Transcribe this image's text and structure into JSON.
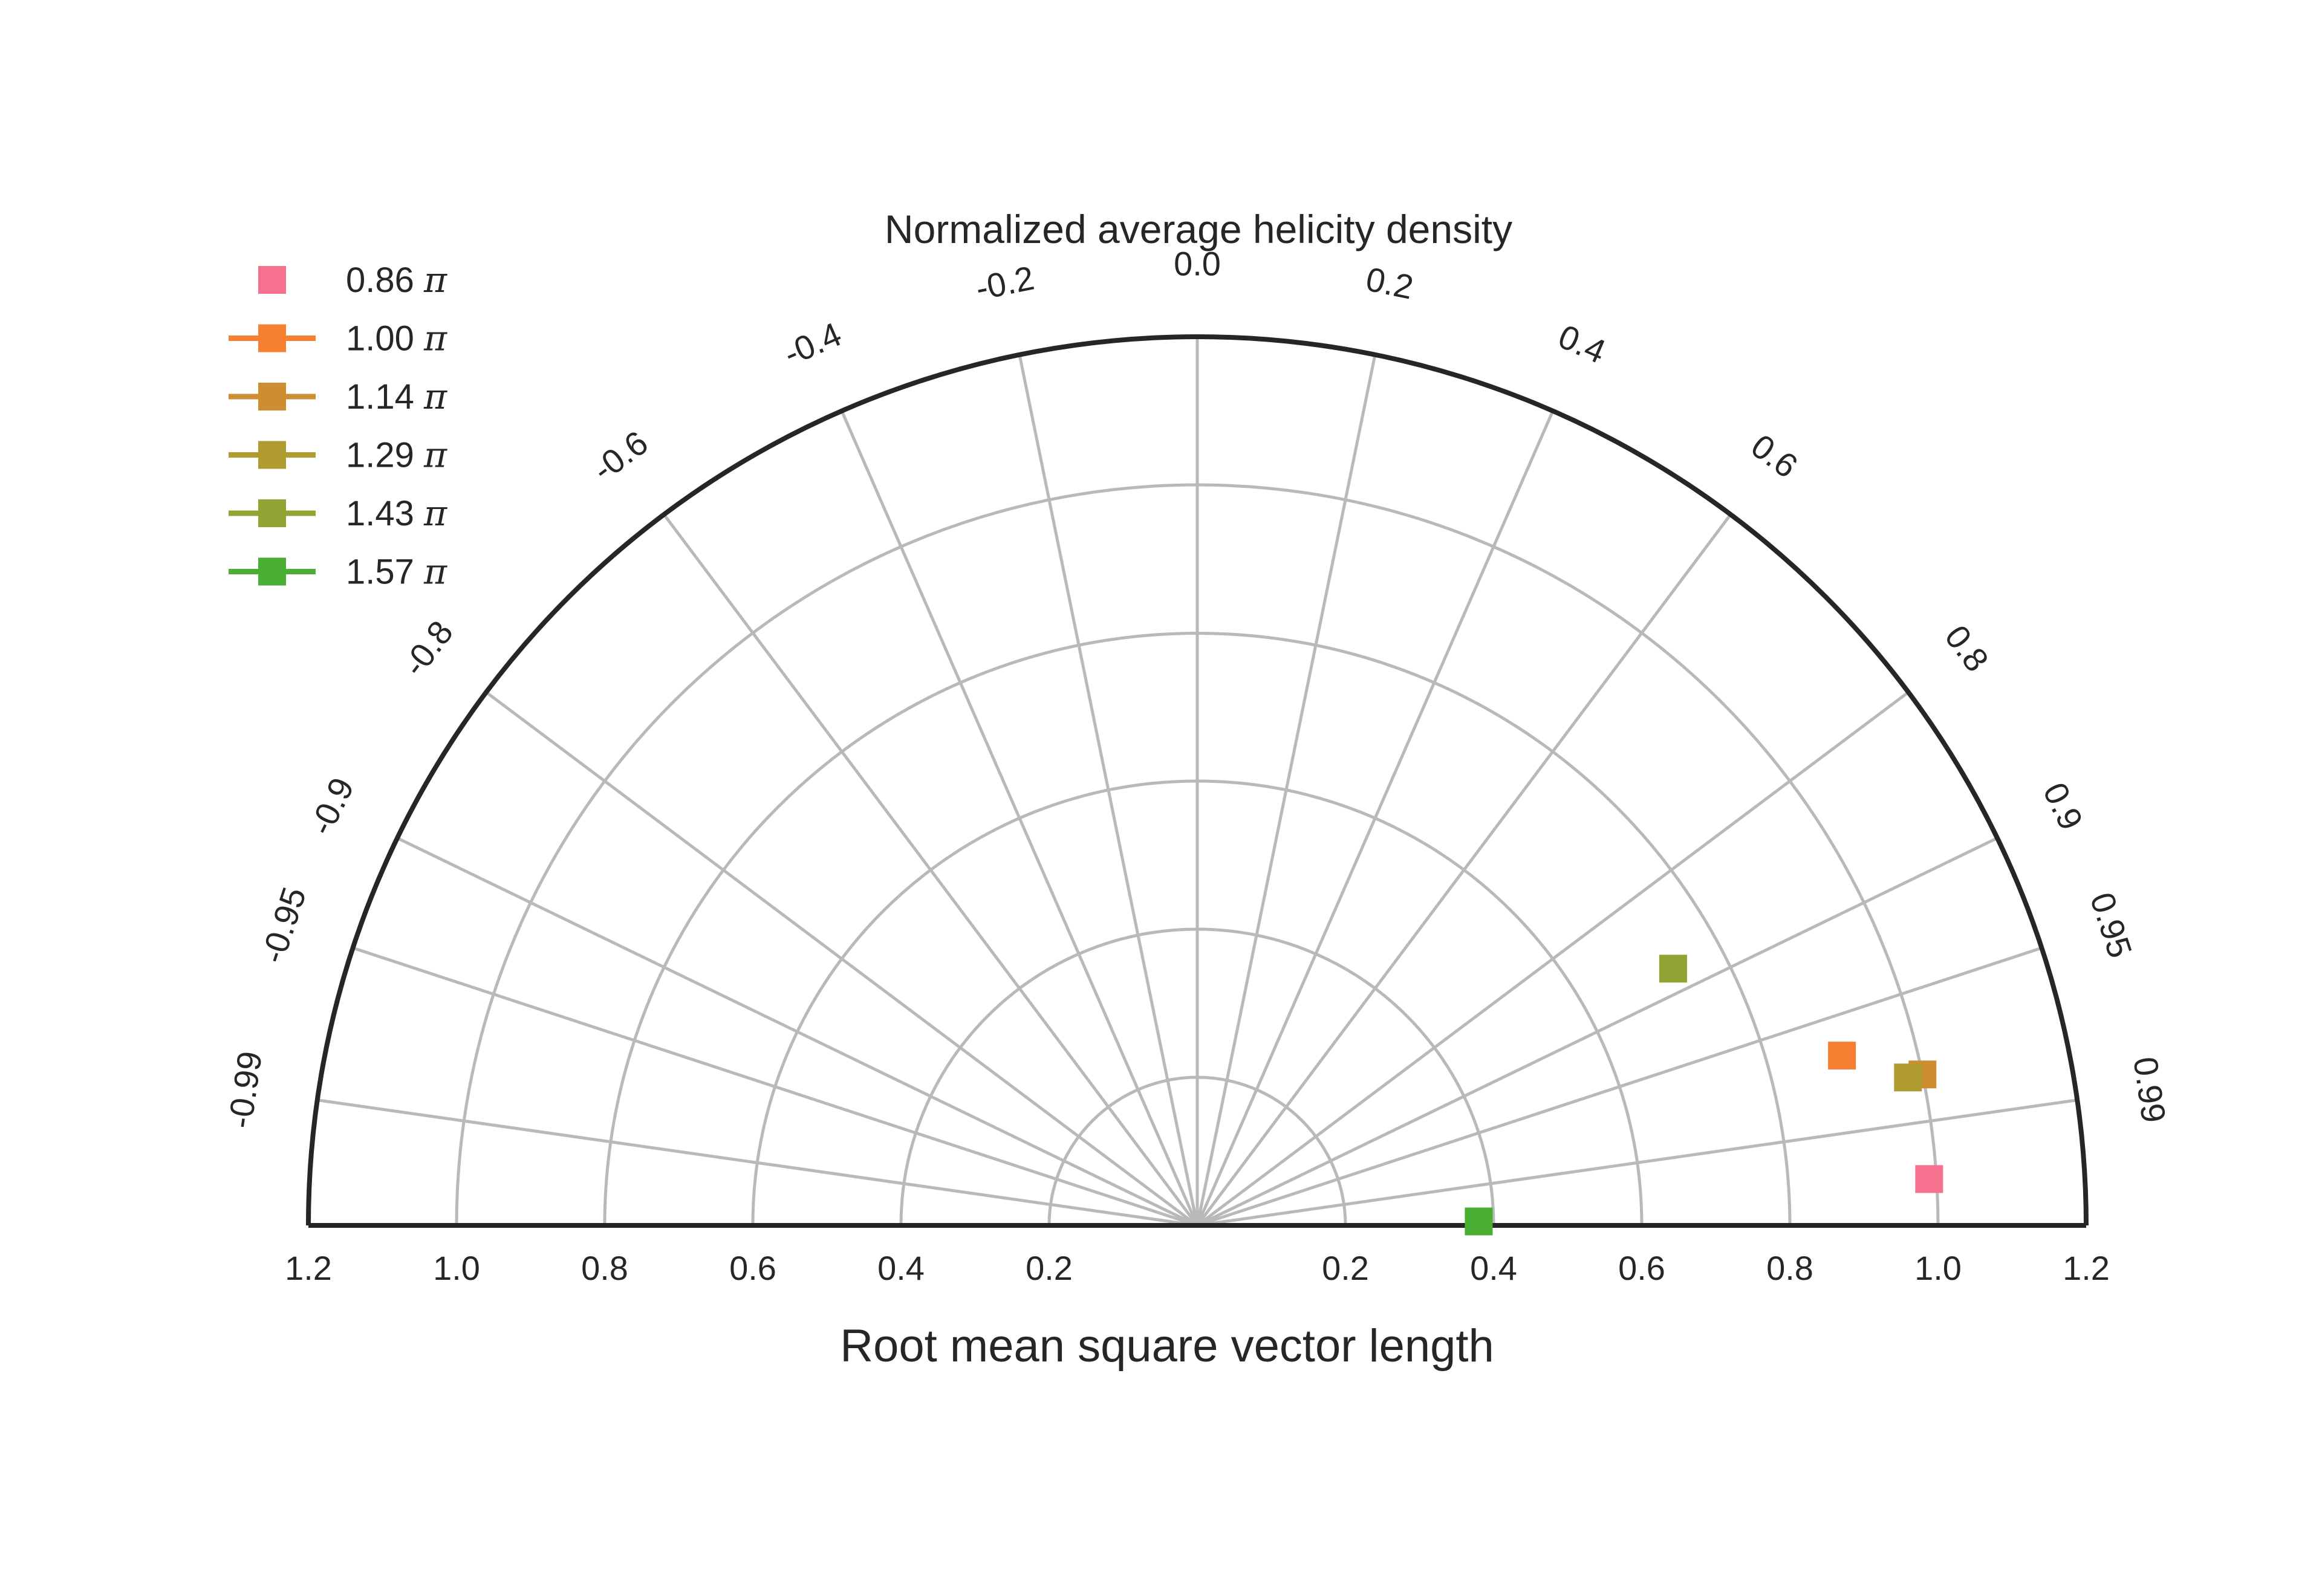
{
  "chart_data": {
    "type": "scatter",
    "projection": "half-polar (Taylor-style diagram)",
    "title": "Normalized average helicity density",
    "xlabel": "Root mean square vector length",
    "radius_range": [
      0,
      1.2
    ],
    "radius_ticks": [
      "0.2",
      "0.4",
      "0.6",
      "0.8",
      "1.0",
      "1.2"
    ],
    "angular_axis": "arcsin(helicity), 0 at top, negative left, positive right",
    "angular_ticks": [
      {
        "label": "-0.99",
        "value": -0.99
      },
      {
        "label": "-0.95",
        "value": -0.95
      },
      {
        "label": "-0.9",
        "value": -0.9
      },
      {
        "label": "-0.8",
        "value": -0.8
      },
      {
        "label": "-0.6",
        "value": -0.6
      },
      {
        "label": "-0.4",
        "value": -0.4
      },
      {
        "label": "-0.2",
        "value": -0.2
      },
      {
        "label": "0.0",
        "value": 0.0
      },
      {
        "label": "0.2",
        "value": 0.2
      },
      {
        "label": "0.4",
        "value": 0.4
      },
      {
        "label": "0.6",
        "value": 0.6
      },
      {
        "label": "0.8",
        "value": 0.8
      },
      {
        "label": "0.9",
        "value": 0.9
      },
      {
        "label": "0.95",
        "value": 0.95
      },
      {
        "label": "0.99",
        "value": 0.99
      }
    ],
    "grid": true,
    "legend_position": "top-left",
    "pi_symbol": "π",
    "series": [
      {
        "name": "0.86",
        "color": "#f6718e",
        "has_line": false,
        "points": [
          {
            "rms": 0.99,
            "helicity": 0.998
          }
        ]
      },
      {
        "name": "1.00",
        "color": "#f67f32",
        "has_line": true,
        "points": [
          {
            "rms": 0.9,
            "helicity": 0.967
          }
        ]
      },
      {
        "name": "1.14",
        "color": "#cd8e32",
        "has_line": true,
        "points": [
          {
            "rms": 1.0,
            "helicity": 0.979
          }
        ]
      },
      {
        "name": "1.29",
        "color": "#b09b31",
        "has_line": true,
        "points": [
          {
            "rms": 0.98,
            "helicity": 0.979
          }
        ]
      },
      {
        "name": "1.43",
        "color": "#8fa432",
        "has_line": true,
        "points": [
          {
            "rms": 0.73,
            "helicity": 0.88
          }
        ]
      },
      {
        "name": "1.57",
        "color": "#4aae35",
        "has_line": true,
        "points": [
          {
            "rms": 0.38,
            "helicity": 0.9999
          }
        ]
      }
    ]
  }
}
